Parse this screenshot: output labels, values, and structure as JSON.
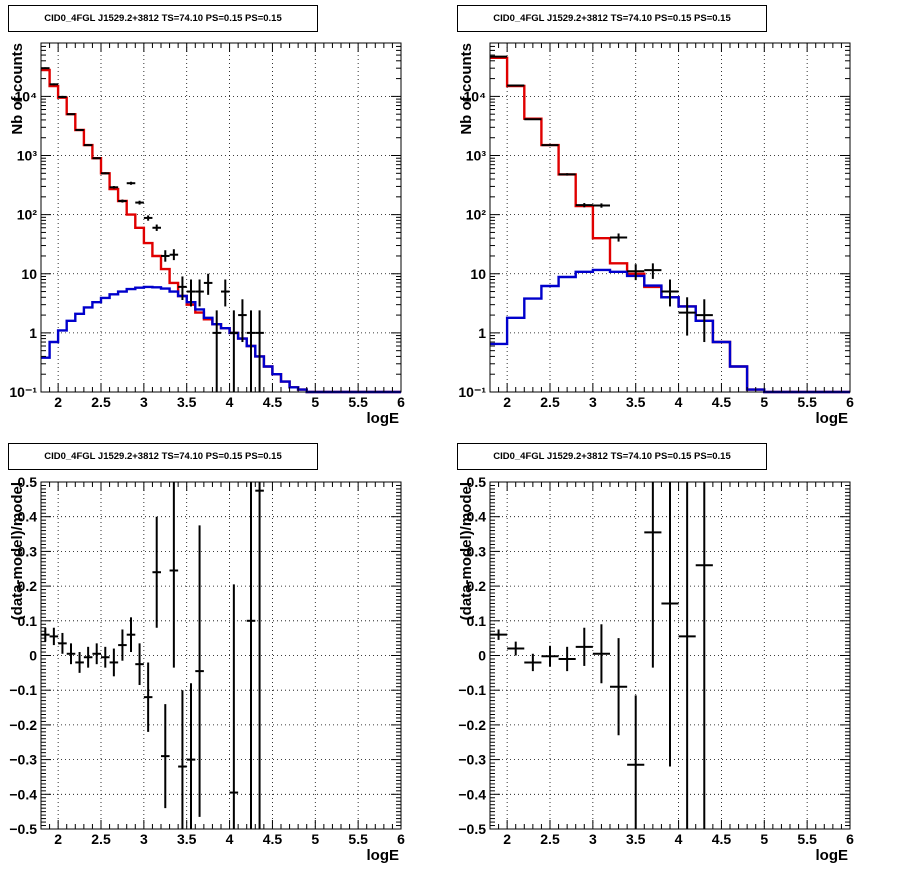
{
  "chart_data": [
    {
      "type": "histogram",
      "title": "CID0_4FGL J1529.2+3812 TS=74.10 PS=0.15 PS=0.15",
      "xlabel": "logE",
      "ylabel": "Nb of counts",
      "y_scale": "log",
      "xlim": [
        1.8,
        6.0
      ],
      "ylim": [
        0.1,
        80000
      ],
      "grid": true,
      "x_ticks": [
        "2",
        "2.5",
        "3",
        "3.5",
        "4",
        "4.5",
        "5",
        "5.5",
        "6"
      ],
      "y_ticks": [
        "10⁻¹",
        "1",
        "10",
        "10²",
        "10³",
        "10⁴"
      ],
      "bin_edges": [
        1.8,
        1.9,
        2.0,
        2.1,
        2.2,
        2.3,
        2.4,
        2.5,
        2.6,
        2.7,
        2.8,
        2.9,
        3.0,
        3.1,
        3.2,
        3.3,
        3.4,
        3.5,
        3.6,
        3.7,
        3.8,
        3.9,
        4.0,
        4.1,
        4.2,
        4.3,
        4.4,
        4.5,
        4.6,
        4.7,
        4.8,
        4.9,
        5.0,
        5.1,
        5.2,
        5.3,
        5.4,
        5.5,
        5.6,
        5.7,
        5.8,
        5.9,
        6.0
      ],
      "series": [
        {
          "color": "#e00000",
          "values": [
            28000,
            15000,
            9500,
            5000,
            2700,
            1500,
            900,
            500,
            270,
            170,
            100,
            60,
            33,
            20,
            12,
            7,
            4.2,
            3,
            2.2,
            1.7,
            1.4,
            1.2,
            1.0,
            0.8,
            0.6,
            0.4,
            0.27,
            0.2,
            0.15,
            0.12,
            0.11,
            0.1,
            0.1,
            0.1,
            0.1,
            0.1,
            0.1,
            0.1,
            0.1,
            0.1,
            0.1,
            0.1
          ]
        },
        {
          "color": "#0000cc",
          "values": [
            0.38,
            0.7,
            1.1,
            1.6,
            2.1,
            2.7,
            3.3,
            3.9,
            4.5,
            5.0,
            5.5,
            5.8,
            6.0,
            5.9,
            5.6,
            5.0,
            4.2,
            3.3,
            2.5,
            1.8,
            1.4,
            1.2,
            1.0,
            0.8,
            0.6,
            0.4,
            0.27,
            0.2,
            0.15,
            0.12,
            0.11,
            0.1,
            0.1,
            0.1,
            0.1,
            0.1,
            0.1,
            0.1,
            0.1,
            0.1,
            0.1,
            0.1
          ]
        }
      ],
      "data_points": [
        {
          "x": 1.85,
          "xerr": 0.05,
          "y": 30000,
          "lo": 29000,
          "hi": 31000
        },
        {
          "x": 1.95,
          "xerr": 0.05,
          "y": 16000,
          "lo": 15400,
          "hi": 16600
        },
        {
          "x": 2.05,
          "xerr": 0.05,
          "y": 9800,
          "lo": 9400,
          "hi": 10200
        },
        {
          "x": 2.15,
          "xerr": 0.05,
          "y": 5000,
          "lo": 4850,
          "hi": 5150
        },
        {
          "x": 2.25,
          "xerr": 0.05,
          "y": 2700,
          "lo": 2600,
          "hi": 2800
        },
        {
          "x": 2.35,
          "xerr": 0.05,
          "y": 1500,
          "lo": 1450,
          "hi": 1550
        },
        {
          "x": 2.45,
          "xerr": 0.05,
          "y": 900,
          "lo": 870,
          "hi": 930
        },
        {
          "x": 2.55,
          "xerr": 0.05,
          "y": 500,
          "lo": 480,
          "hi": 520
        },
        {
          "x": 2.65,
          "xerr": 0.05,
          "y": 290,
          "lo": 275,
          "hi": 305
        },
        {
          "x": 2.75,
          "xerr": 0.05,
          "y": 170,
          "lo": 160,
          "hi": 180
        },
        {
          "x": 2.85,
          "xerr": 0.05,
          "y": 340,
          "lo": 320,
          "hi": 360
        },
        {
          "x": 2.95,
          "xerr": 0.05,
          "y": 160,
          "lo": 148,
          "hi": 172
        },
        {
          "x": 3.05,
          "xerr": 0.05,
          "y": 88,
          "lo": 79,
          "hi": 97
        },
        {
          "x": 3.15,
          "xerr": 0.05,
          "y": 60,
          "lo": 53,
          "hi": 68
        },
        {
          "x": 3.25,
          "xerr": 0.05,
          "y": 20,
          "lo": 16,
          "hi": 25
        },
        {
          "x": 3.35,
          "xerr": 0.05,
          "y": 21,
          "lo": 17,
          "hi": 26
        },
        {
          "x": 3.45,
          "xerr": 0.05,
          "y": 6,
          "lo": 3.6,
          "hi": 9
        },
        {
          "x": 3.55,
          "xerr": 0.05,
          "y": 5,
          "lo": 2.8,
          "hi": 8
        },
        {
          "x": 3.65,
          "xerr": 0.05,
          "y": 5,
          "lo": 2.8,
          "hi": 8
        },
        {
          "x": 3.75,
          "xerr": 0.05,
          "y": 7,
          "lo": 4.4,
          "hi": 10
        },
        {
          "x": 3.85,
          "xerr": 0.05,
          "y": 1,
          "lo": 0.1,
          "hi": 2.4
        },
        {
          "x": 3.95,
          "xerr": 0.05,
          "y": 5,
          "lo": 2.8,
          "hi": 8
        },
        {
          "x": 4.05,
          "xerr": 0.05,
          "y": 1,
          "lo": 0.1,
          "hi": 2.4
        },
        {
          "x": 4.15,
          "xerr": 0.05,
          "y": 2,
          "lo": 0.7,
          "hi": 3.7
        },
        {
          "x": 4.25,
          "xerr": 0.05,
          "y": 1,
          "lo": 0.1,
          "hi": 2.4
        },
        {
          "x": 4.35,
          "xerr": 0.05,
          "y": 1,
          "lo": 0.1,
          "hi": 2.4
        }
      ]
    },
    {
      "type": "histogram",
      "title": "CID0_4FGL J1529.2+3812 TS=74.10 PS=0.15 PS=0.15",
      "xlabel": "logE",
      "ylabel": "Nb of counts",
      "y_scale": "log",
      "xlim": [
        1.8,
        6.0
      ],
      "ylim": [
        0.1,
        80000
      ],
      "grid": true,
      "x_ticks": [
        "2",
        "2.5",
        "3",
        "3.5",
        "4",
        "4.5",
        "5",
        "5.5",
        "6"
      ],
      "y_ticks": [
        "10⁻¹",
        "1",
        "10",
        "10²",
        "10³",
        "10⁴"
      ],
      "bin_edges": [
        1.8,
        2.0,
        2.2,
        2.4,
        2.6,
        2.8,
        3.0,
        3.2,
        3.4,
        3.6,
        3.8,
        4.0,
        4.2,
        4.4,
        4.6,
        4.8,
        5.0,
        5.2,
        5.4,
        5.6,
        5.8,
        6.0
      ],
      "series": [
        {
          "color": "#e00000",
          "values": [
            45000,
            15000,
            4200,
            1500,
            480,
            140,
            40,
            15,
            10,
            6,
            4,
            2.8,
            1.6,
            0.7,
            0.27,
            0.11,
            0.1,
            0.1,
            0.1,
            0.1,
            0.1
          ]
        },
        {
          "color": "#0000cc",
          "values": [
            0.65,
            1.8,
            3.8,
            6.2,
            8.8,
            10.8,
            11.6,
            10.8,
            9.2,
            6.3,
            4,
            2.8,
            1.6,
            0.7,
            0.27,
            0.11,
            0.1,
            0.1,
            0.1,
            0.1,
            0.1
          ]
        }
      ],
      "data_points": [
        {
          "x": 1.9,
          "xerr": 0.1,
          "y": 47000,
          "lo": 46500,
          "hi": 47500
        },
        {
          "x": 2.1,
          "xerr": 0.1,
          "y": 15300,
          "lo": 15050,
          "hi": 15550
        },
        {
          "x": 2.3,
          "xerr": 0.1,
          "y": 4100,
          "lo": 4030,
          "hi": 4170
        },
        {
          "x": 2.5,
          "xerr": 0.1,
          "y": 1500,
          "lo": 1460,
          "hi": 1540
        },
        {
          "x": 2.7,
          "xerr": 0.1,
          "y": 480,
          "lo": 458,
          "hi": 502
        },
        {
          "x": 2.9,
          "xerr": 0.1,
          "y": 145,
          "lo": 133,
          "hi": 157
        },
        {
          "x": 3.1,
          "xerr": 0.1,
          "y": 143,
          "lo": 131,
          "hi": 155
        },
        {
          "x": 3.3,
          "xerr": 0.1,
          "y": 41,
          "lo": 35,
          "hi": 48
        },
        {
          "x": 3.5,
          "xerr": 0.1,
          "y": 11,
          "lo": 7.8,
          "hi": 14.5
        },
        {
          "x": 3.7,
          "xerr": 0.1,
          "y": 11.5,
          "lo": 8.2,
          "hi": 15
        },
        {
          "x": 3.9,
          "xerr": 0.1,
          "y": 5,
          "lo": 2.8,
          "hi": 8
        },
        {
          "x": 4.1,
          "xerr": 0.1,
          "y": 2.2,
          "lo": 0.9,
          "hi": 4
        },
        {
          "x": 4.3,
          "xerr": 0.1,
          "y": 2,
          "lo": 0.7,
          "hi": 3.7
        }
      ]
    },
    {
      "type": "scatter",
      "title": "CID0_4FGL J1529.2+3812 TS=74.10 PS=0.15 PS=0.15",
      "xlabel": "logE",
      "ylabel": "(data-model)/model",
      "xlim": [
        1.8,
        6.0
      ],
      "ylim": [
        -0.5,
        0.5
      ],
      "grid": true,
      "x_ticks": [
        "2",
        "2.5",
        "3",
        "3.5",
        "4",
        "4.5",
        "5",
        "5.5",
        "6"
      ],
      "y_ticks": [
        "−0.5",
        "−0.4",
        "−0.3",
        "−0.2",
        "−0.1",
        "0",
        "0.1",
        "0.2",
        "0.3",
        "0.4",
        "0.5"
      ],
      "data_points": [
        {
          "x": 1.85,
          "xerr": 0.05,
          "y": 0.06,
          "err": 0.02
        },
        {
          "x": 1.95,
          "xerr": 0.05,
          "y": 0.055,
          "err": 0.025
        },
        {
          "x": 2.05,
          "xerr": 0.05,
          "y": 0.035,
          "err": 0.03
        },
        {
          "x": 2.15,
          "xerr": 0.05,
          "y": 0.005,
          "err": 0.03
        },
        {
          "x": 2.25,
          "xerr": 0.05,
          "y": -0.02,
          "err": 0.03
        },
        {
          "x": 2.35,
          "xerr": 0.05,
          "y": -0.005,
          "err": 0.03
        },
        {
          "x": 2.45,
          "xerr": 0.05,
          "y": 0.005,
          "err": 0.03
        },
        {
          "x": 2.55,
          "xerr": 0.05,
          "y": -0.005,
          "err": 0.03
        },
        {
          "x": 2.65,
          "xerr": 0.05,
          "y": -0.02,
          "err": 0.04
        },
        {
          "x": 2.75,
          "xerr": 0.05,
          "y": 0.03,
          "err": 0.045
        },
        {
          "x": 2.85,
          "xerr": 0.05,
          "y": 0.06,
          "err": 0.05
        },
        {
          "x": 2.95,
          "xerr": 0.05,
          "y": -0.025,
          "err": 0.06
        },
        {
          "x": 3.05,
          "xerr": 0.05,
          "y": -0.12,
          "err": 0.1
        },
        {
          "x": 3.15,
          "xerr": 0.05,
          "y": 0.24,
          "err": 0.16
        },
        {
          "x": 3.25,
          "xerr": 0.05,
          "y": -0.29,
          "err": 0.15
        },
        {
          "x": 3.35,
          "xerr": 0.05,
          "y": 0.245,
          "err": 0.28
        },
        {
          "x": 3.45,
          "xerr": 0.05,
          "y": -0.32,
          "err": 0.22
        },
        {
          "x": 3.55,
          "xerr": 0.05,
          "y": -0.3,
          "err": 0.22
        },
        {
          "x": 3.65,
          "xerr": 0.05,
          "y": -0.045,
          "err": 0.42
        },
        {
          "x": 4.05,
          "xerr": 0.05,
          "y": -0.395,
          "err": 0.6
        },
        {
          "x": 4.25,
          "xerr": 0.05,
          "y": 0.1,
          "err": 0.9
        },
        {
          "x": 4.35,
          "xerr": 0.05,
          "y": 0.475,
          "err": 1.0
        }
      ]
    },
    {
      "type": "scatter",
      "title": "CID0_4FGL J1529.2+3812 TS=74.10 PS=0.15 PS=0.15",
      "xlabel": "logE",
      "ylabel": "(data-model)/model",
      "xlim": [
        1.8,
        6.0
      ],
      "ylim": [
        -0.5,
        0.5
      ],
      "grid": true,
      "x_ticks": [
        "2",
        "2.5",
        "3",
        "3.5",
        "4",
        "4.5",
        "5",
        "5.5",
        "6"
      ],
      "y_ticks": [
        "−0.5",
        "−0.4",
        "−0.3",
        "−0.2",
        "−0.1",
        "0",
        "0.1",
        "0.2",
        "0.3",
        "0.4",
        "0.5"
      ],
      "data_points": [
        {
          "x": 1.9,
          "xerr": 0.1,
          "y": 0.06,
          "err": 0.015
        },
        {
          "x": 2.1,
          "xerr": 0.1,
          "y": 0.02,
          "err": 0.02
        },
        {
          "x": 2.3,
          "xerr": 0.1,
          "y": -0.02,
          "err": 0.025
        },
        {
          "x": 2.5,
          "xerr": 0.1,
          "y": -0.002,
          "err": 0.03
        },
        {
          "x": 2.7,
          "xerr": 0.1,
          "y": -0.01,
          "err": 0.035
        },
        {
          "x": 2.9,
          "xerr": 0.1,
          "y": 0.025,
          "err": 0.055
        },
        {
          "x": 3.1,
          "xerr": 0.1,
          "y": 0.005,
          "err": 0.085
        },
        {
          "x": 3.3,
          "xerr": 0.1,
          "y": -0.09,
          "err": 0.14
        },
        {
          "x": 3.5,
          "xerr": 0.1,
          "y": -0.315,
          "err": 0.2
        },
        {
          "x": 3.7,
          "xerr": 0.1,
          "y": 0.355,
          "err": 0.39
        },
        {
          "x": 3.9,
          "xerr": 0.1,
          "y": 0.15,
          "err": 0.47
        },
        {
          "x": 4.1,
          "xerr": 0.1,
          "y": 0.055,
          "err": 0.65
        },
        {
          "x": 4.3,
          "xerr": 0.1,
          "y": 0.26,
          "err": 0.8
        }
      ]
    }
  ]
}
